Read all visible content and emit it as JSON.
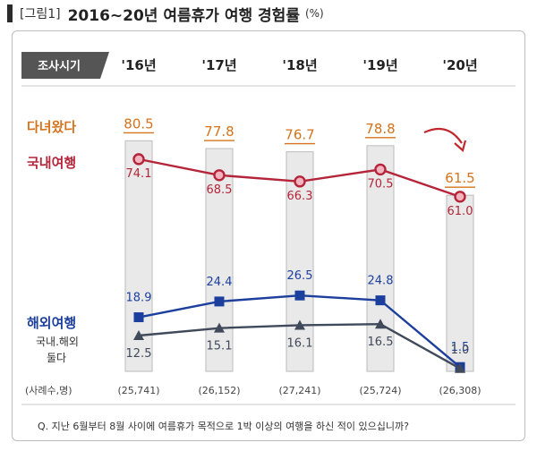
{
  "title": {
    "figure_label": "[그림1]",
    "main": "2016~20년 여름휴가 여행 경험률",
    "unit": "(%)"
  },
  "header": {
    "survey_badge": "조사시기"
  },
  "labels": {
    "visited": "다녀왔다",
    "domestic": "국내여행",
    "overseas": "해외여행",
    "both_line1": "국내.해외",
    "both_line2": "둘다",
    "sample": "(사례수,명)"
  },
  "footnote": "Q. 지난 6월부터 8월 사이에 여름휴가 목적으로 1박 이상의 여행을 하신 적이 있으십니까?",
  "colors": {
    "visited": "#d4731c",
    "domestic": "#b5253a",
    "overseas": "#1c3f9e",
    "both": "#404a5a",
    "bar_fill": "#e9e9e9",
    "bar_stroke": "#c4c4c4",
    "badge": "#555555"
  },
  "chart_data": {
    "type": "bar",
    "categories": [
      "'16년",
      "'17년",
      "'18년",
      "'19년",
      "'20년"
    ],
    "sample_sizes": [
      "(25,741)",
      "(26,152)",
      "(27,241)",
      "(25,724)",
      "(26,308)"
    ],
    "bars": {
      "name": "다녀왔다",
      "values": [
        80.5,
        77.8,
        76.7,
        78.8,
        61.5
      ],
      "labels": [
        "80.5",
        "77.8",
        "76.7",
        "78.8",
        "61.5"
      ]
    },
    "series": [
      {
        "name": "국내여행",
        "type": "line",
        "marker": "circle",
        "values": [
          74.1,
          68.5,
          66.3,
          70.5,
          61.0
        ],
        "labels": [
          "74.1",
          "68.5",
          "66.3",
          "70.5",
          "61.0"
        ]
      },
      {
        "name": "해외여행",
        "type": "line",
        "marker": "square",
        "values": [
          18.9,
          24.4,
          26.5,
          24.8,
          1.5
        ],
        "labels": [
          "18.9",
          "24.4",
          "26.5",
          "24.8",
          "1.5"
        ]
      },
      {
        "name": "국내.해외 둘다",
        "type": "line",
        "marker": "triangle",
        "values": [
          12.5,
          15.1,
          16.1,
          16.5,
          1.0
        ],
        "labels": [
          "12.5",
          "15.1",
          "16.1",
          "16.5",
          "1.0"
        ]
      }
    ],
    "ylim": [
      0,
      100
    ],
    "grid": false
  }
}
